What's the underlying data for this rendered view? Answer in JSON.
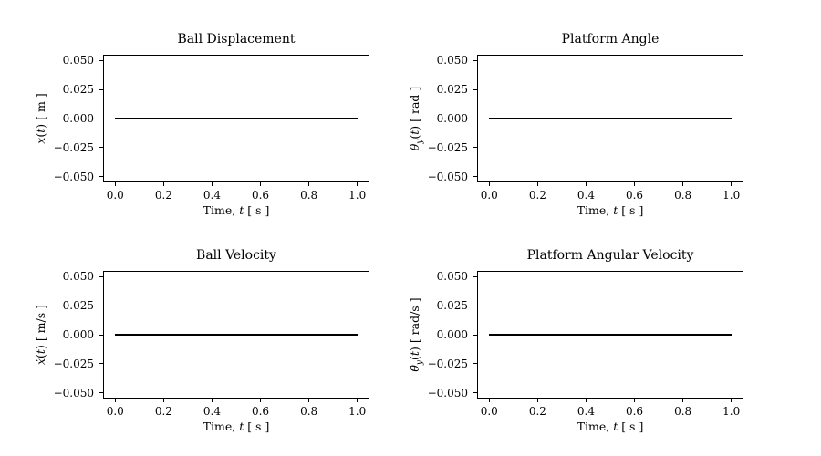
{
  "figure": {
    "background": "#ffffff",
    "text_color": "#000000",
    "axis_color": "#000000",
    "line_color": "#000000"
  },
  "chart_data": [
    {
      "type": "line",
      "title": "Ball Displacement",
      "xlabel": {
        "prefix": "Time, ",
        "var": "t",
        "unit": " [ s ]"
      },
      "ylabel": {
        "var": "x",
        "sub": "",
        "arg_open": "(",
        "arg_var": "t",
        "arg_close": ")",
        "unit": " [ m ]"
      },
      "series": [
        {
          "name": "x(t)",
          "x": [
            0.0,
            1.0
          ],
          "y": [
            0.0,
            0.0
          ]
        }
      ],
      "xlim": [
        -0.05,
        1.05
      ],
      "ylim": [
        -0.055,
        0.055
      ],
      "xticks": [
        0.0,
        0.2,
        0.4,
        0.6,
        0.8,
        1.0
      ],
      "xtick_labels": [
        "0.0",
        "0.2",
        "0.4",
        "0.6",
        "0.8",
        "1.0"
      ],
      "yticks": [
        0.05,
        0.025,
        0.0,
        -0.025,
        -0.05
      ],
      "ytick_labels": [
        "0.050",
        "0.025",
        "0.000",
        "−0.025",
        "−0.050"
      ],
      "grid": false,
      "legend": null
    },
    {
      "type": "line",
      "title": "Platform Angle",
      "xlabel": {
        "prefix": "Time, ",
        "var": "t",
        "unit": " [ s ]"
      },
      "ylabel": {
        "var": "θ",
        "sub": "y",
        "arg_open": "(",
        "arg_var": "t",
        "arg_close": ")",
        "unit": " [ rad ]"
      },
      "series": [
        {
          "name": "theta_y(t)",
          "x": [
            0.0,
            1.0
          ],
          "y": [
            0.0,
            0.0
          ]
        }
      ],
      "xlim": [
        -0.05,
        1.05
      ],
      "ylim": [
        -0.055,
        0.055
      ],
      "xticks": [
        0.0,
        0.2,
        0.4,
        0.6,
        0.8,
        1.0
      ],
      "xtick_labels": [
        "0.0",
        "0.2",
        "0.4",
        "0.6",
        "0.8",
        "1.0"
      ],
      "yticks": [
        0.05,
        0.025,
        0.0,
        -0.025,
        -0.05
      ],
      "ytick_labels": [
        "0.050",
        "0.025",
        "0.000",
        "−0.025",
        "−0.050"
      ],
      "grid": false,
      "legend": null
    },
    {
      "type": "line",
      "title": "Ball Velocity",
      "xlabel": {
        "prefix": "Time, ",
        "var": "t",
        "unit": " [ s ]"
      },
      "ylabel": {
        "var": "ẋ",
        "sub": "",
        "arg_open": "(",
        "arg_var": "t",
        "arg_close": ")",
        "unit": " [ m/s ]"
      },
      "series": [
        {
          "name": "xdot(t)",
          "x": [
            0.0,
            1.0
          ],
          "y": [
            0.0,
            0.0
          ]
        }
      ],
      "xlim": [
        -0.05,
        1.05
      ],
      "ylim": [
        -0.055,
        0.055
      ],
      "xticks": [
        0.0,
        0.2,
        0.4,
        0.6,
        0.8,
        1.0
      ],
      "xtick_labels": [
        "0.0",
        "0.2",
        "0.4",
        "0.6",
        "0.8",
        "1.0"
      ],
      "yticks": [
        0.05,
        0.025,
        0.0,
        -0.025,
        -0.05
      ],
      "ytick_labels": [
        "0.050",
        "0.025",
        "0.000",
        "−0.025",
        "−0.050"
      ],
      "grid": false,
      "legend": null
    },
    {
      "type": "line",
      "title": "Platform Angular Velocity",
      "xlabel": {
        "prefix": "Time, ",
        "var": "t",
        "unit": " [ s ]"
      },
      "ylabel": {
        "var": "θ̇",
        "sub": "y",
        "arg_open": "(",
        "arg_var": "t",
        "arg_close": ")",
        "unit": " [ rad/s ]"
      },
      "series": [
        {
          "name": "thetadot_y(t)",
          "x": [
            0.0,
            1.0
          ],
          "y": [
            0.0,
            0.0
          ]
        }
      ],
      "xlim": [
        -0.05,
        1.05
      ],
      "ylim": [
        -0.055,
        0.055
      ],
      "xticks": [
        0.0,
        0.2,
        0.4,
        0.6,
        0.8,
        1.0
      ],
      "xtick_labels": [
        "0.0",
        "0.2",
        "0.4",
        "0.6",
        "0.8",
        "1.0"
      ],
      "yticks": [
        0.05,
        0.025,
        0.0,
        -0.025,
        -0.05
      ],
      "ytick_labels": [
        "0.050",
        "0.025",
        "0.000",
        "−0.025",
        "−0.050"
      ],
      "grid": false,
      "legend": null
    }
  ]
}
